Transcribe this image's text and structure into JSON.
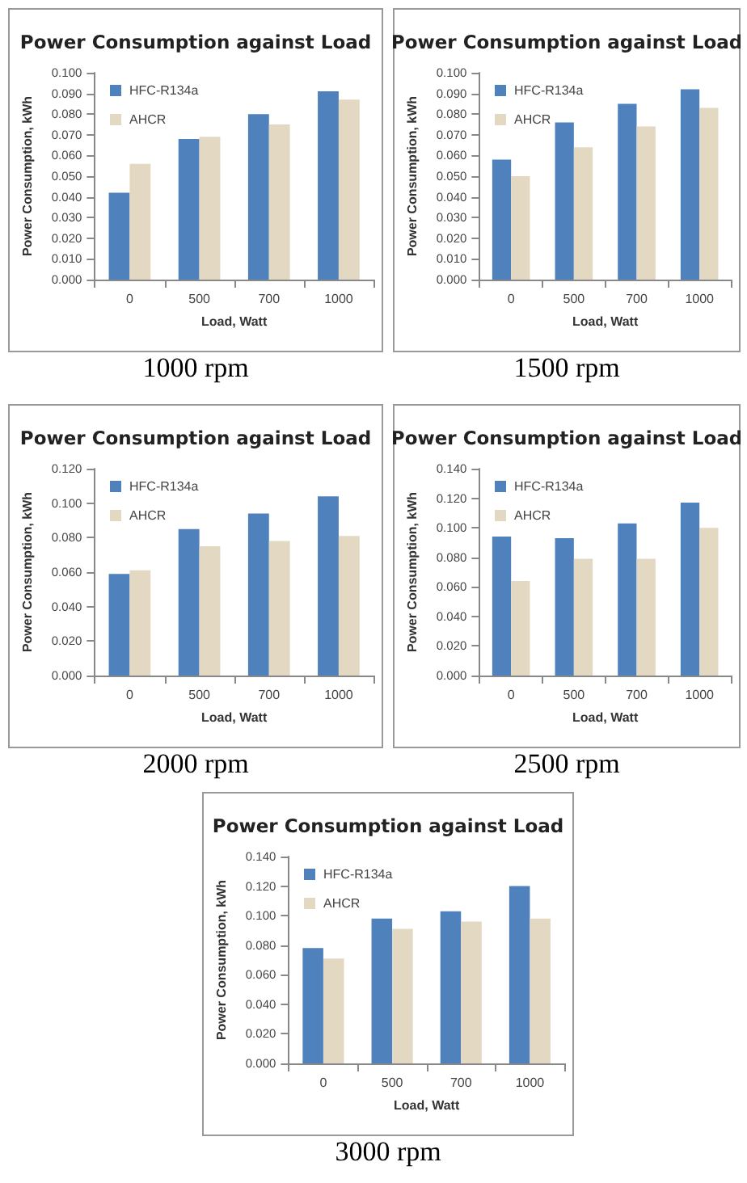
{
  "chart_data": [
    {
      "type": "bar",
      "title": "Power Consumption against Load",
      "xlabel": "Load, Watt",
      "ylabel": "Power Consumption, kWh",
      "annotations": [
        "1000 rpm"
      ],
      "categories": [
        "0",
        "500",
        "700",
        "1000"
      ],
      "legend": "top left",
      "grid": false,
      "ylim": [
        0,
        0.1
      ],
      "yticks": [
        {
          "value": 0,
          "label": "0.000"
        },
        {
          "value": 0.01,
          "label": "0.010"
        },
        {
          "value": 0.02,
          "label": "0.020"
        },
        {
          "value": 0.03,
          "label": "0.030"
        },
        {
          "value": 0.04,
          "label": "0.040"
        },
        {
          "value": 0.05,
          "label": "0.050"
        },
        {
          "value": 0.06,
          "label": "0.060"
        },
        {
          "value": 0.07,
          "label": "0.070"
        },
        {
          "value": 0.08,
          "label": "0.080"
        },
        {
          "value": 0.09,
          "label": "0.090"
        },
        {
          "value": 0.1,
          "label": "0.100"
        }
      ],
      "series": [
        {
          "name": "HFC-R134a",
          "color": "#4f81bd",
          "values": [
            0.042,
            0.068,
            0.08,
            0.091
          ]
        },
        {
          "name": "AHCR",
          "color": "#e3d9c3",
          "values": [
            0.056,
            0.069,
            0.075,
            0.087
          ]
        }
      ]
    },
    {
      "type": "bar",
      "title": "Power Consumption against Load",
      "xlabel": "Load, Watt",
      "ylabel": "Power Consumption, kWh",
      "annotations": [
        "1500 rpm"
      ],
      "categories": [
        "0",
        "500",
        "700",
        "1000"
      ],
      "legend": "top left",
      "grid": false,
      "ylim": [
        0,
        0.1
      ],
      "yticks": [
        {
          "value": 0,
          "label": "0.000"
        },
        {
          "value": 0.01,
          "label": "0.010"
        },
        {
          "value": 0.02,
          "label": "0.020"
        },
        {
          "value": 0.03,
          "label": "0.030"
        },
        {
          "value": 0.04,
          "label": "0.040"
        },
        {
          "value": 0.05,
          "label": "0.050"
        },
        {
          "value": 0.06,
          "label": "0.060"
        },
        {
          "value": 0.07,
          "label": "0.070"
        },
        {
          "value": 0.08,
          "label": "0.080"
        },
        {
          "value": 0.09,
          "label": "0.090"
        },
        {
          "value": 0.1,
          "label": "0.100"
        }
      ],
      "series": [
        {
          "name": "HFC-R134a",
          "color": "#4f81bd",
          "values": [
            0.058,
            0.076,
            0.085,
            0.092
          ]
        },
        {
          "name": "AHCR",
          "color": "#e3d9c3",
          "values": [
            0.05,
            0.064,
            0.074,
            0.083
          ]
        }
      ]
    },
    {
      "type": "bar",
      "title": "Power Consumption against Load",
      "xlabel": "Load, Watt",
      "ylabel": "Power Consumption, kWh",
      "annotations": [
        "2000 rpm"
      ],
      "categories": [
        "0",
        "500",
        "700",
        "1000"
      ],
      "legend": "top left",
      "grid": false,
      "ylim": [
        0,
        0.12
      ],
      "yticks": [
        {
          "value": 0,
          "label": "0.000"
        },
        {
          "value": 0.02,
          "label": "0.020"
        },
        {
          "value": 0.04,
          "label": "0.040"
        },
        {
          "value": 0.06,
          "label": "0.060"
        },
        {
          "value": 0.08,
          "label": "0.080"
        },
        {
          "value": 0.1,
          "label": "0.100"
        },
        {
          "value": 0.12,
          "label": "0.120"
        }
      ],
      "series": [
        {
          "name": "HFC-R134a",
          "color": "#4f81bd",
          "values": [
            0.059,
            0.085,
            0.094,
            0.104
          ]
        },
        {
          "name": "AHCR",
          "color": "#e3d9c3",
          "values": [
            0.061,
            0.075,
            0.078,
            0.081
          ]
        }
      ]
    },
    {
      "type": "bar",
      "title": "Power Consumption against Load",
      "xlabel": "Load, Watt",
      "ylabel": "Power Consumption, kWh",
      "annotations": [
        "2500 rpm"
      ],
      "categories": [
        "0",
        "500",
        "700",
        "1000"
      ],
      "legend": "top left",
      "grid": false,
      "ylim": [
        0,
        0.14
      ],
      "yticks": [
        {
          "value": 0,
          "label": "0.000"
        },
        {
          "value": 0.02,
          "label": "0.020"
        },
        {
          "value": 0.04,
          "label": "0.040"
        },
        {
          "value": 0.06,
          "label": "0.060"
        },
        {
          "value": 0.08,
          "label": "0.080"
        },
        {
          "value": 0.1,
          "label": "0.100"
        },
        {
          "value": 0.12,
          "label": "0.120"
        },
        {
          "value": 0.14,
          "label": "0.140"
        }
      ],
      "series": [
        {
          "name": "HFC-R134a",
          "color": "#4f81bd",
          "values": [
            0.094,
            0.093,
            0.103,
            0.117
          ]
        },
        {
          "name": "AHCR",
          "color": "#e3d9c3",
          "values": [
            0.064,
            0.079,
            0.079,
            0.1
          ]
        }
      ]
    },
    {
      "type": "bar",
      "title": "Power Consumption against Load",
      "xlabel": "Load, Watt",
      "ylabel": "Power Consumption, kWh",
      "annotations": [
        "3000 rpm"
      ],
      "categories": [
        "0",
        "500",
        "700",
        "1000"
      ],
      "legend": "top left",
      "grid": false,
      "ylim": [
        0,
        0.14
      ],
      "yticks": [
        {
          "value": 0,
          "label": "0.000"
        },
        {
          "value": 0.02,
          "label": "0.020"
        },
        {
          "value": 0.04,
          "label": "0.040"
        },
        {
          "value": 0.06,
          "label": "0.060"
        },
        {
          "value": 0.08,
          "label": "0.080"
        },
        {
          "value": 0.1,
          "label": "0.100"
        },
        {
          "value": 0.12,
          "label": "0.120"
        },
        {
          "value": 0.14,
          "label": "0.140"
        }
      ],
      "series": [
        {
          "name": "HFC-R134a",
          "color": "#4f81bd",
          "values": [
            0.078,
            0.098,
            0.103,
            0.12
          ]
        },
        {
          "name": "AHCR",
          "color": "#e3d9c3",
          "values": [
            0.071,
            0.091,
            0.096,
            0.098
          ]
        }
      ]
    }
  ]
}
